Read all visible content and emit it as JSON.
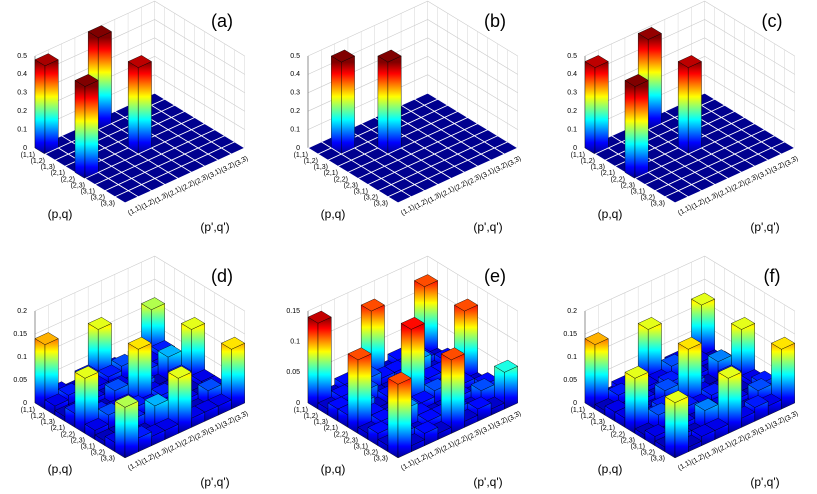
{
  "chart_data": [
    {
      "type": "bar3d",
      "label": "(a)",
      "colormap": "jet",
      "y_label": "(p,q)",
      "x_label": "(p',q')",
      "row_categories": [
        "(1,1)",
        "(1,2)",
        "(1,3)",
        "(2,1)",
        "(2,2)",
        "(2,3)",
        "(3,1)",
        "(3,2)",
        "(3,3)"
      ],
      "col_categories": [
        "(1,1)",
        "(1,2)",
        "(1,3)",
        "(2,1)",
        "(2,2)",
        "(2,3)",
        "(3,1)",
        "(3,2)",
        "(3,3)"
      ],
      "zlim": [
        0,
        0.5
      ],
      "zticks": [
        0,
        0.1,
        0.2,
        0.3,
        0.4,
        0.5
      ],
      "z": [
        [
          0.48,
          0,
          0,
          0,
          0.5,
          0,
          0,
          0,
          0
        ],
        [
          0,
          0,
          0,
          0,
          0,
          0,
          0,
          0,
          0
        ],
        [
          0,
          0,
          0,
          0,
          0,
          0,
          0,
          0,
          0
        ],
        [
          0,
          0,
          0,
          0,
          0,
          0,
          0,
          0,
          0
        ],
        [
          0.5,
          0,
          0,
          0,
          0.47,
          0,
          0,
          0,
          0
        ],
        [
          0,
          0,
          0,
          0,
          0,
          0,
          0,
          0,
          0
        ],
        [
          0,
          0,
          0,
          0,
          0,
          0,
          0,
          0,
          0
        ],
        [
          0,
          0,
          0,
          0,
          0,
          0,
          0,
          0,
          0
        ],
        [
          0,
          0,
          0,
          0,
          0,
          0,
          0,
          0,
          0
        ]
      ]
    },
    {
      "type": "bar3d",
      "label": "(b)",
      "colormap": "jet",
      "y_label": "(p,q)",
      "x_label": "(p',q')",
      "row_categories": [
        "(1,1)",
        "(1,2)",
        "(1,3)",
        "(2,1)",
        "(2,2)",
        "(2,3)",
        "(3,1)",
        "(3,2)",
        "(3,3)"
      ],
      "col_categories": [
        "(1,1)",
        "(1,2)",
        "(1,3)",
        "(2,1)",
        "(2,2)",
        "(2,3)",
        "(3,1)",
        "(3,2)",
        "(3,3)"
      ],
      "zlim": [
        0,
        0.5
      ],
      "zticks": [
        0,
        0.1,
        0.2,
        0.3,
        0.4,
        0.5
      ],
      "z": [
        [
          0,
          0,
          0,
          0,
          0,
          0,
          0,
          0,
          0
        ],
        [
          0,
          0.5,
          0,
          0,
          0,
          0,
          0,
          0,
          0
        ],
        [
          0,
          0,
          0,
          0,
          0,
          0,
          0,
          0,
          0
        ],
        [
          0,
          0,
          0,
          0.5,
          0,
          0,
          0,
          0,
          0
        ],
        [
          0,
          0,
          0,
          0,
          0,
          0,
          0,
          0,
          0
        ],
        [
          0,
          0,
          0,
          0,
          0,
          0,
          0,
          0,
          0
        ],
        [
          0,
          0,
          0,
          0,
          0,
          0,
          0,
          0,
          0
        ],
        [
          0,
          0,
          0,
          0,
          0,
          0,
          0,
          0,
          0
        ],
        [
          0,
          0,
          0,
          0,
          0,
          0,
          0,
          0,
          0
        ]
      ]
    },
    {
      "type": "bar3d",
      "label": "(c)",
      "colormap": "jet",
      "y_label": "(p,q)",
      "x_label": "(p',q')",
      "row_categories": [
        "(1,1)",
        "(1,2)",
        "(1,3)",
        "(2,1)",
        "(2,2)",
        "(2,3)",
        "(3,1)",
        "(3,2)",
        "(3,3)"
      ],
      "col_categories": [
        "(1,1)",
        "(1,2)",
        "(1,3)",
        "(2,1)",
        "(2,2)",
        "(2,3)",
        "(3,1)",
        "(3,2)",
        "(3,3)"
      ],
      "zlim": [
        0,
        0.5
      ],
      "zticks": [
        0,
        0.1,
        0.2,
        0.3,
        0.4,
        0.5
      ],
      "z": [
        [
          0.47,
          0,
          0,
          0,
          0.49,
          0,
          0,
          0,
          0
        ],
        [
          0,
          0,
          0,
          0,
          0,
          0,
          0,
          0,
          0
        ],
        [
          0,
          0,
          0,
          0,
          0,
          0,
          0,
          0,
          0
        ],
        [
          0,
          0,
          0,
          0,
          0,
          0,
          0,
          0,
          0
        ],
        [
          0.5,
          0,
          0,
          0,
          0.47,
          0,
          0,
          0,
          0
        ],
        [
          0,
          0,
          0,
          0,
          0,
          0,
          0,
          0,
          0
        ],
        [
          0,
          0,
          0,
          0,
          0,
          0,
          0,
          0,
          0
        ],
        [
          0,
          0,
          0,
          0,
          0,
          0,
          0,
          0,
          0
        ],
        [
          0,
          0,
          0,
          0,
          0,
          0,
          0,
          0,
          0
        ]
      ]
    },
    {
      "type": "bar3d",
      "label": "(d)",
      "colormap": "jet",
      "y_label": "(p,q)",
      "x_label": "(p',q')",
      "row_categories": [
        "(1,1)",
        "(1,2)",
        "(1,3)",
        "(2,1)",
        "(2,2)",
        "(2,3)",
        "(3,1)",
        "(3,2)",
        "(3,3)"
      ],
      "col_categories": [
        "(1,1)",
        "(1,2)",
        "(1,3)",
        "(2,1)",
        "(2,2)",
        "(2,3)",
        "(3,1)",
        "(3,2)",
        "(3,3)"
      ],
      "zlim": [
        0,
        0.2
      ],
      "zticks": [
        0,
        0.05,
        0.1,
        0.15,
        0.2
      ],
      "z": [
        [
          0.14,
          0.02,
          0.01,
          0.03,
          0.12,
          0.02,
          0.01,
          0.02,
          0.11
        ],
        [
          0.02,
          0.03,
          0.01,
          0.02,
          0.03,
          0.04,
          0.01,
          0.02,
          0.03
        ],
        [
          0.01,
          0.01,
          0.02,
          0.01,
          0.02,
          0.01,
          0.03,
          0.01,
          0.02
        ],
        [
          0.03,
          0.02,
          0.01,
          0.04,
          0.02,
          0.03,
          0.01,
          0.06,
          0.02
        ],
        [
          0.12,
          0.03,
          0.02,
          0.02,
          0.13,
          0.02,
          0.01,
          0.03,
          0.12
        ],
        [
          0.02,
          0.04,
          0.01,
          0.03,
          0.02,
          0.03,
          0.02,
          0.01,
          0.02
        ],
        [
          0.01,
          0.01,
          0.03,
          0.01,
          0.01,
          0.02,
          0.02,
          0.01,
          0.02
        ],
        [
          0.02,
          0.02,
          0.01,
          0.06,
          0.03,
          0.01,
          0.01,
          0.04,
          0.02
        ],
        [
          0.11,
          0.03,
          0.02,
          0.02,
          0.12,
          0.02,
          0.02,
          0.02,
          0.13
        ]
      ]
    },
    {
      "type": "bar3d",
      "label": "(e)",
      "colormap": "jet",
      "y_label": "(p,q)",
      "x_label": "(p',q')",
      "row_categories": [
        "(1,1)",
        "(1,2)",
        "(1,3)",
        "(2,1)",
        "(2,2)",
        "(2,3)",
        "(3,1)",
        "(3,2)",
        "(3,3)"
      ],
      "col_categories": [
        "(1,1)",
        "(1,2)",
        "(1,3)",
        "(2,1)",
        "(2,2)",
        "(2,3)",
        "(3,1)",
        "(3,2)",
        "(3,3)"
      ],
      "zlim": [
        0,
        0.15
      ],
      "zticks": [
        0,
        0.05,
        0.1,
        0.15
      ],
      "z": [
        [
          0.14,
          0.01,
          0.02,
          0.02,
          0.12,
          0.01,
          0.02,
          0.01,
          0.12
        ],
        [
          0.01,
          0.02,
          0.01,
          0.03,
          0.02,
          0.02,
          0.01,
          0.02,
          0.01
        ],
        [
          0.02,
          0.01,
          0.03,
          0.01,
          0.01,
          0.02,
          0.04,
          0.01,
          0.02
        ],
        [
          0.02,
          0.03,
          0.01,
          0.02,
          0.03,
          0.01,
          0.02,
          0.02,
          0.01
        ],
        [
          0.12,
          0.02,
          0.01,
          0.03,
          0.13,
          0.02,
          0.01,
          0.02,
          0.12
        ],
        [
          0.01,
          0.02,
          0.02,
          0.01,
          0.02,
          0.03,
          0.01,
          0.02,
          0.01
        ],
        [
          0.02,
          0.01,
          0.04,
          0.02,
          0.01,
          0.01,
          0.02,
          0.01,
          0.02
        ],
        [
          0.01,
          0.02,
          0.01,
          0.02,
          0.02,
          0.02,
          0.01,
          0.03,
          0.01
        ],
        [
          0.12,
          0.01,
          0.02,
          0.01,
          0.12,
          0.01,
          0.02,
          0.01,
          0.06
        ]
      ]
    },
    {
      "type": "bar3d",
      "label": "(f)",
      "colormap": "jet",
      "y_label": "(p,q)",
      "x_label": "(p',q')",
      "row_categories": [
        "(1,1)",
        "(1,2)",
        "(1,3)",
        "(2,1)",
        "(2,2)",
        "(2,3)",
        "(3,1)",
        "(3,2)",
        "(3,3)"
      ],
      "col_categories": [
        "(1,1)",
        "(1,2)",
        "(1,3)",
        "(2,1)",
        "(2,2)",
        "(2,3)",
        "(3,1)",
        "(3,2)",
        "(3,3)"
      ],
      "zlim": [
        0,
        0.2
      ],
      "zticks": [
        0,
        0.05,
        0.1,
        0.15,
        0.2
      ],
      "z": [
        [
          0.14,
          0.01,
          0.02,
          0.02,
          0.12,
          0.01,
          0.02,
          0.01,
          0.12
        ],
        [
          0.01,
          0.03,
          0.01,
          0.02,
          0.02,
          0.04,
          0.01,
          0.02,
          0.01
        ],
        [
          0.02,
          0.01,
          0.02,
          0.01,
          0.03,
          0.01,
          0.02,
          0.01,
          0.02
        ],
        [
          0.02,
          0.02,
          0.01,
          0.04,
          0.02,
          0.03,
          0.01,
          0.05,
          0.02
        ],
        [
          0.12,
          0.02,
          0.03,
          0.02,
          0.13,
          0.02,
          0.01,
          0.03,
          0.12
        ],
        [
          0.01,
          0.04,
          0.01,
          0.03,
          0.02,
          0.03,
          0.02,
          0.01,
          0.02
        ],
        [
          0.02,
          0.01,
          0.02,
          0.01,
          0.01,
          0.02,
          0.02,
          0.01,
          0.03
        ],
        [
          0.01,
          0.02,
          0.01,
          0.05,
          0.03,
          0.01,
          0.01,
          0.04,
          0.02
        ],
        [
          0.12,
          0.01,
          0.02,
          0.02,
          0.12,
          0.02,
          0.03,
          0.02,
          0.13
        ]
      ]
    }
  ]
}
